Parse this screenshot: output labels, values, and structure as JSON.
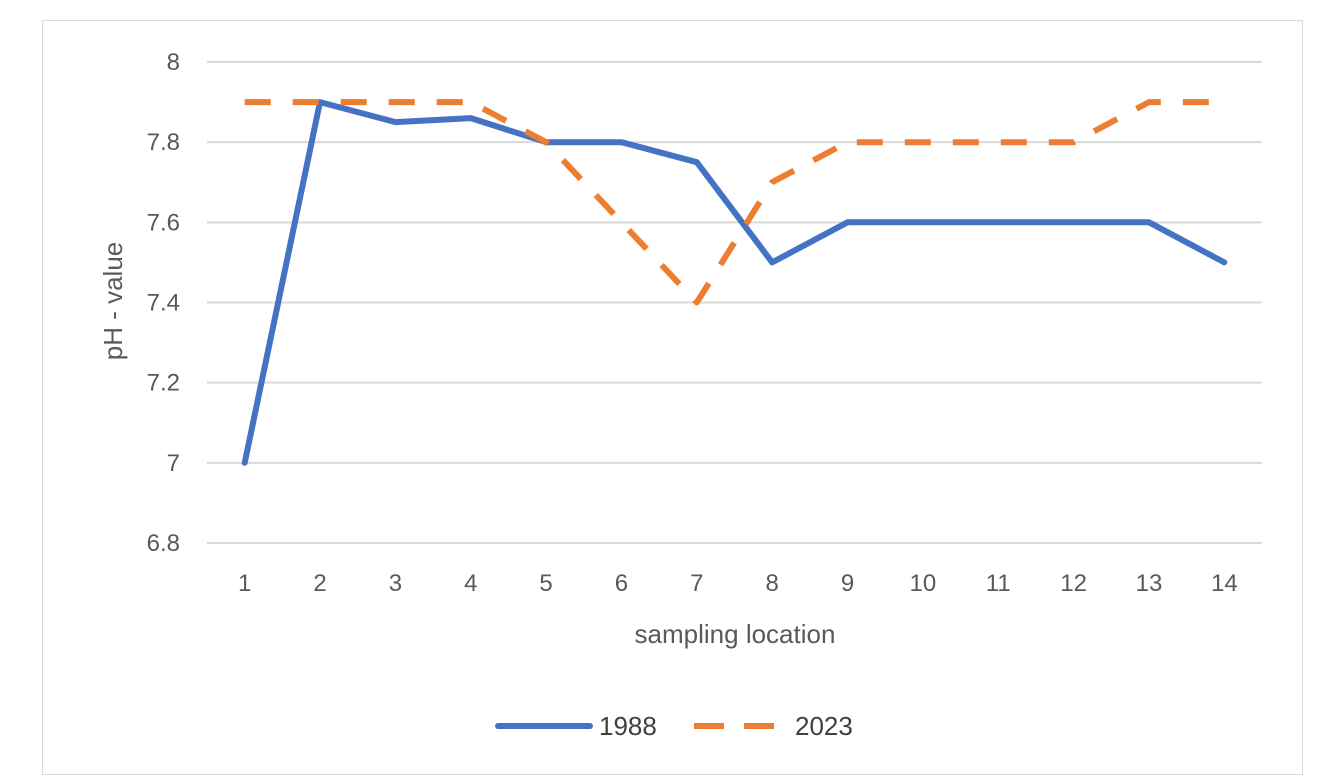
{
  "chart_data": {
    "type": "line",
    "title": "",
    "xlabel": "sampling location",
    "ylabel": "pH - value",
    "ylim": [
      6.8,
      8
    ],
    "yticks": [
      6.8,
      7,
      7.2,
      7.4,
      7.6,
      7.8,
      8
    ],
    "ytick_labels": [
      "6.8",
      "7",
      "7.2",
      "7.4",
      "7.6",
      "7.8",
      "8"
    ],
    "categories": [
      "1",
      "2",
      "3",
      "4",
      "5",
      "6",
      "7",
      "8",
      "9",
      "10",
      "11",
      "12",
      "13",
      "14"
    ],
    "grid": true,
    "legend_position": "bottom",
    "series": [
      {
        "name": "1988",
        "values": [
          7.0,
          7.9,
          7.85,
          7.86,
          7.8,
          7.8,
          7.75,
          7.5,
          7.6,
          7.6,
          7.6,
          7.6,
          7.6,
          7.5
        ],
        "color": "#4472c4",
        "style": "solid"
      },
      {
        "name": "2023",
        "values": [
          7.9,
          7.9,
          7.9,
          7.9,
          7.8,
          7.6,
          7.4,
          7.7,
          7.8,
          7.8,
          7.8,
          7.8,
          7.9,
          7.9
        ],
        "color": "#ed7d31",
        "style": "dashed"
      }
    ]
  }
}
